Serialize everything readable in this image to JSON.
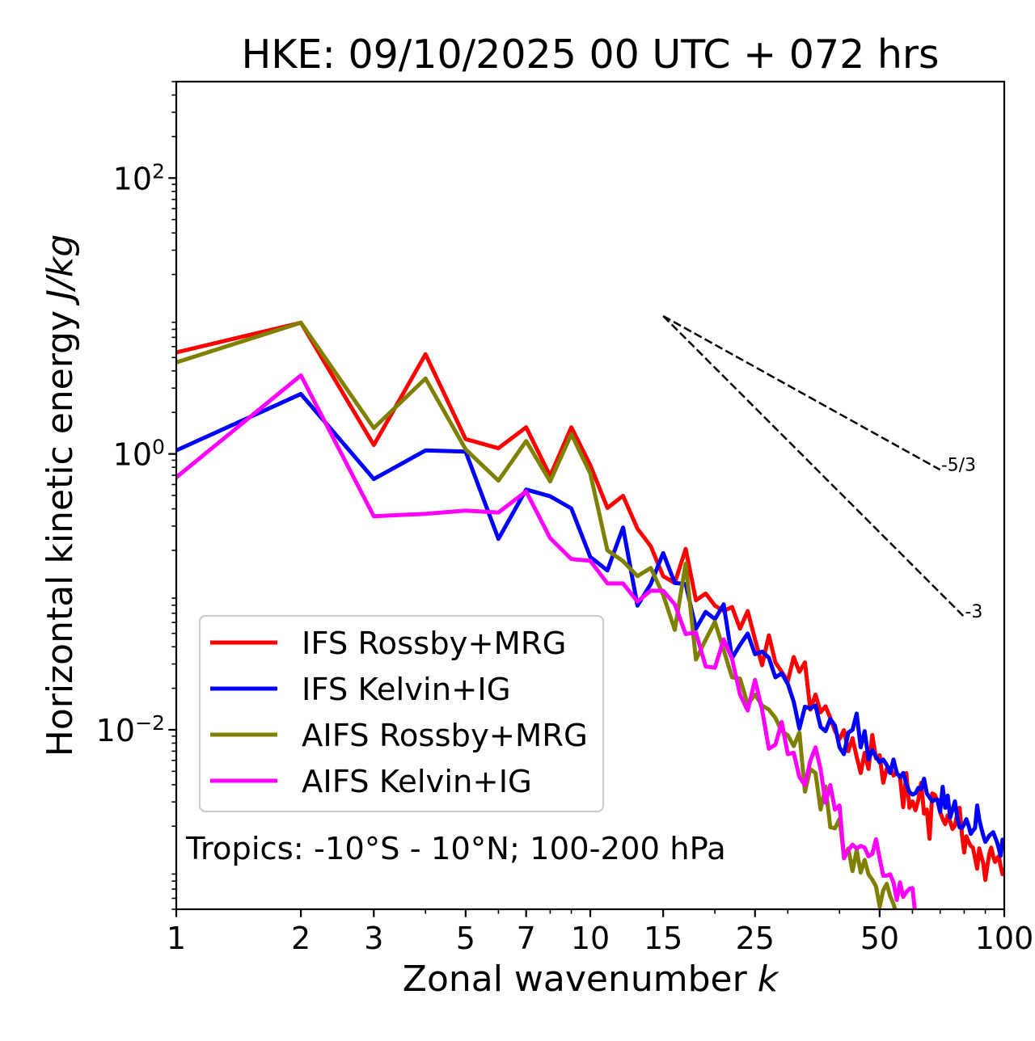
{
  "chart_data": {
    "type": "line",
    "title": "HKE: 09/10/2025 00 UTC + 072 hrs",
    "xlabel": "Zonal wavenumber",
    "xlabel_var": "k",
    "ylabel": "Horizontal kinetic energy",
    "ylabel_unit": "J/kg",
    "xscale": "log",
    "yscale": "log",
    "xlim": [
      1,
      100
    ],
    "ylim": [
      0.0005,
      500
    ],
    "grid": false,
    "xticks": {
      "values": [
        1,
        2,
        3,
        5,
        7,
        10,
        15,
        25,
        50,
        100
      ],
      "labels": [
        "1",
        "2",
        "3",
        "5",
        "7",
        "10",
        "15",
        "25",
        "50",
        "100"
      ]
    },
    "x_minor_ticks": [
      4,
      6,
      8,
      9,
      20,
      30,
      40,
      60,
      70,
      80,
      90
    ],
    "yticks": {
      "values": [
        0.01,
        1,
        100
      ],
      "labels": [
        {
          "base": "10",
          "exp": "−2"
        },
        {
          "base": "10",
          "exp": "0"
        },
        {
          "base": "10",
          "exp": "2"
        }
      ]
    },
    "y_minor_subs": [
      2,
      3,
      4,
      5,
      6,
      7,
      8,
      9
    ],
    "legend": {
      "placement": "lower-left"
    },
    "annotation": "Tropics: -10°S - 10°N; 100-200 hPa",
    "reference_lines": [
      {
        "label": "-5/3",
        "slope": -1.6667,
        "k_start": 15,
        "value_start": 10,
        "k_end": 70,
        "style": "dashed",
        "color": "#000000"
      },
      {
        "label": "-3",
        "slope": -3,
        "k_start": 15,
        "value_start": 10,
        "k_end": 80,
        "style": "dashed",
        "color": "#000000"
      }
    ],
    "x": [
      1,
      2,
      3,
      4,
      5,
      6,
      7,
      8,
      9,
      10,
      11,
      12,
      13,
      14,
      15,
      16,
      17,
      18,
      19,
      20,
      21,
      22,
      23,
      24,
      25,
      26,
      27,
      28,
      29,
      30,
      31,
      32,
      33,
      34,
      35,
      36,
      37,
      38,
      39,
      40,
      41,
      42,
      43,
      44,
      45,
      46,
      47,
      48,
      49,
      50,
      51,
      52,
      53,
      54,
      55,
      56,
      57,
      58,
      59,
      60,
      61,
      62,
      63,
      64,
      65,
      66,
      67,
      68,
      69,
      70,
      71,
      72,
      73,
      74,
      75,
      76,
      77,
      78,
      79,
      80,
      81,
      82,
      83,
      84,
      85,
      86,
      87,
      88,
      89,
      90,
      91,
      92,
      93,
      94,
      95,
      96,
      97,
      98,
      99,
      100
    ],
    "series": [
      {
        "name": "IFS Rossby+MRG",
        "color": "#ff0000",
        "values": [
          5.44,
          8.94,
          1.16,
          5.28,
          1.28,
          1.1,
          1.56,
          0.691,
          1.56,
          0.828,
          0.406,
          0.497,
          0.287,
          0.214,
          0.13,
          0.116,
          0.205,
          0.0869,
          0.0973,
          0.0795,
          0.0726,
          0.0777,
          0.0541,
          0.0726,
          0.0452,
          0.0294,
          0.0484,
          0.0308,
          0.0263,
          0.0225,
          0.0337,
          0.0263,
          0.0308,
          0.014,
          0.018,
          0.0134,
          0.0148,
          0.0122,
          0.00981,
          0.00857,
          0.00995,
          0.007,
          0.00869,
          0.00637,
          0.00486,
          0.00681,
          0.0052,
          0.00917,
          0.0062,
          0.00654,
          0.00413,
          0.0052,
          0.00534,
          0.00466,
          0.00486,
          0.00454,
          0.00275,
          0.00486,
          0.00272,
          0.00303,
          0.00261,
          0.00311,
          0.00413,
          0.00247,
          0.00264,
          0.00162,
          0.00346,
          0.00337,
          0.00303,
          0.00254,
          0.00225,
          0.00207,
          0.0024,
          0.00216,
          0.00191,
          0.00202,
          0.00247,
          0.00272,
          0.00176,
          0.00129,
          0.00169,
          0.00154,
          0.00144,
          0.0014,
          0.00117,
          0.000985,
          0.00138,
          0.00121,
          0.00107,
          0.000815,
          0.00103,
          0.00126,
          0.0014,
          0.00121,
          0.0011,
          0.00117,
          0.00121,
          0.00103,
          0.000896,
          0.000959
        ]
      },
      {
        "name": "IFS Kelvin+IG",
        "color": "#0000ff",
        "values": [
          1.06,
          2.72,
          0.658,
          1.06,
          1.04,
          0.242,
          0.552,
          0.493,
          0.403,
          0.179,
          0.143,
          0.293,
          0.0795,
          0.114,
          0.191,
          0.116,
          0.114,
          0.0541,
          0.0716,
          0.0634,
          0.0812,
          0.033,
          0.0413,
          0.0499,
          0.0353,
          0.0369,
          0.0333,
          0.024,
          0.0257,
          0.0215,
          0.016,
          0.0102,
          0.0147,
          0.0143,
          0.015,
          0.0105,
          0.00977,
          0.012,
          0.0107,
          0.00746,
          0.00666,
          0.00955,
          0.00999,
          0.0131,
          0.00746,
          0.00977,
          0.00609,
          0.00712,
          0.00637,
          0.00581,
          0.00609,
          0.00556,
          0.00486,
          0.00609,
          0.00486,
          0.00454,
          0.00486,
          0.00406,
          0.00354,
          0.00339,
          0.00346,
          0.00379,
          0.00371,
          0.00442,
          0.00346,
          0.00324,
          0.00303,
          0.00311,
          0.00311,
          0.00254,
          0.00386,
          0.00272,
          0.00333,
          0.00231,
          0.00264,
          0.00303,
          0.00231,
          0.00196,
          0.00194,
          0.00207,
          0.00225,
          0.00202,
          0.00176,
          0.00186,
          0.00194,
          0.00283,
          0.00225,
          0.00194,
          0.00171,
          0.00154,
          0.00162,
          0.00171,
          0.00176,
          0.00181,
          0.00167,
          0.00154,
          0.00138,
          0.00122,
          0.0016,
          0.00154
        ]
      },
      {
        "name": "AIFS Rossby+MRG",
        "color": "#808000",
        "values": [
          4.61,
          8.94,
          1.54,
          3.52,
          1.08,
          0.64,
          1.24,
          0.632,
          1.39,
          0.723,
          0.2,
          0.167,
          0.13,
          0.149,
          0.0951,
          0.053,
          0.16,
          0.0323,
          0.045,
          0.0606,
          0.0378,
          0.024,
          0.0235,
          0.0153,
          0.018,
          0.015,
          0.014,
          0.0122,
          0.00977,
          0.00913,
          0.00762,
          0.00955,
          0.00356,
          0.0052,
          0.00486,
          0.00264,
          0.00388,
          0.00197,
          0.00193,
          0.00226,
          0.00121,
          0.00138,
          0.000946,
          0.00134,
          0.000921,
          0.00114,
          0.000896,
          0.000819,
          0.000731,
          0.000522,
          0.000684,
          0.000765,
          0.000625,
          0.000546,
          0.000456
        ]
      },
      {
        "name": "AIFS Kelvin+IG",
        "color": "#ff00ff",
        "values": [
          0.676,
          3.71,
          0.353,
          0.368,
          0.388,
          0.376,
          0.535,
          0.245,
          0.173,
          0.168,
          0.115,
          0.115,
          0.085,
          0.102,
          0.102,
          0.0812,
          0.0495,
          0.0506,
          0.0288,
          0.0282,
          0.0452,
          0.0327,
          0.018,
          0.0138,
          0.023,
          0.014,
          0.00729,
          0.0078,
          0.0114,
          0.00666,
          0.00681,
          0.00454,
          0.00397,
          0.00595,
          0.00746,
          0.0052,
          0.00296,
          0.00397,
          0.00264,
          0.00283,
          0.00117,
          0.00134,
          0.00147,
          0.00138,
          0.00144,
          0.0014,
          0.00121,
          0.00126,
          0.00161,
          0.00117,
          0.000876,
          0.000876,
          0.000896,
          0.000783,
          0.000584,
          0.000783,
          0.000614,
          0.000666,
          0.000703,
          0.000712,
          0.000456
        ]
      }
    ]
  }
}
